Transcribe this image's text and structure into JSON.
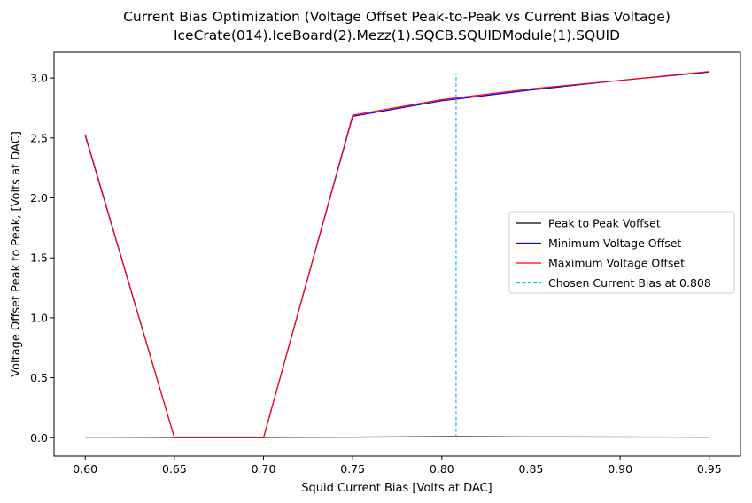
{
  "chart_data": {
    "type": "line",
    "title": "Current Bias Optimization (Voltage Offset Peak-to-Peak vs Current Bias Voltage)",
    "subtitle": "IceCrate(014).IceBoard(2).Mezz(1).SQCB.SQUIDModule(1).SQUID",
    "xlabel": "Squid Current Bias [Volts at DAC]",
    "ylabel": "Voltage Offset Peak to Peak, [Volts at DAC]",
    "xlim": [
      0.5825,
      0.9675
    ],
    "ylim": [
      -0.153,
      3.215
    ],
    "x_ticks": [
      "0.60",
      "0.65",
      "0.70",
      "0.75",
      "0.80",
      "0.85",
      "0.90",
      "0.95"
    ],
    "x_tick_values": [
      0.6,
      0.65,
      0.7,
      0.75,
      0.8,
      0.85,
      0.9,
      0.95
    ],
    "y_ticks": [
      "0.0",
      "0.5",
      "1.0",
      "1.5",
      "2.0",
      "2.5",
      "3.0"
    ],
    "y_tick_values": [
      0.0,
      0.5,
      1.0,
      1.5,
      2.0,
      2.5,
      3.0
    ],
    "grid": false,
    "legend_position": "center-right",
    "series": [
      {
        "name": "Peak to Peak Voffset",
        "color": "#000000",
        "style": "solid",
        "x": [
          0.6,
          0.65,
          0.7,
          0.75,
          0.808,
          0.85,
          0.9,
          0.95
        ],
        "y": [
          0.005,
          0.003,
          0.003,
          0.005,
          0.01,
          0.007,
          0.006,
          0.005
        ]
      },
      {
        "name": "Minimum Voltage Offset",
        "color": "#0000ff",
        "style": "solid",
        "x": [
          0.6,
          0.65,
          0.7,
          0.75,
          0.8,
          0.85,
          0.9,
          0.95
        ],
        "y": [
          2.52,
          0.0,
          0.0,
          2.68,
          2.81,
          2.9,
          2.98,
          3.05
        ]
      },
      {
        "name": "Maximum Voltage Offset",
        "color": "#ff0000",
        "style": "solid",
        "x": [
          0.6,
          0.65,
          0.7,
          0.75,
          0.8,
          0.85,
          0.9,
          0.95
        ],
        "y": [
          2.53,
          0.0,
          0.0,
          2.69,
          2.82,
          2.91,
          2.98,
          3.055
        ]
      },
      {
        "name": "Chosen Current Bias at 0.808",
        "color": "#17becf",
        "style": "dashed",
        "x": [
          0.808,
          0.808
        ],
        "y": [
          0.0,
          3.04
        ]
      }
    ]
  }
}
